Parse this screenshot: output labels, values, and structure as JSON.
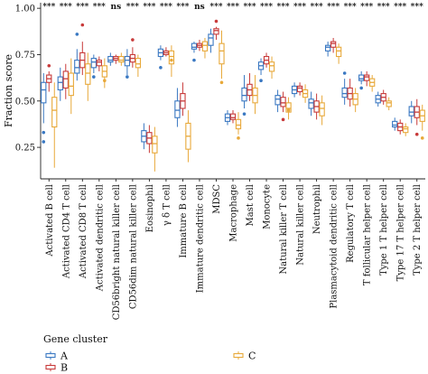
{
  "chart_data": {
    "type": "box",
    "ylabel": "Fraction score",
    "yticks": [
      0.25,
      0.5,
      0.75,
      1.0
    ],
    "ylim": [
      0.08,
      1.03
    ],
    "categories": [
      "Activated B cell",
      "Activated CD4 T cell",
      "Activated CD8 T cell",
      "Activated dendritic cell",
      "CD56bright natural killer cell",
      "CD56dim natural killer cell",
      "Eosinophil",
      "γ δ T cell",
      "Immature B cell",
      "Immature dendritic cell",
      "MDSC",
      "Macrophage",
      "Mast cell",
      "Monocyte",
      "Natural killer T cell",
      "Natural killer cell",
      "Neutrophil",
      "Plasmacytoid dendritic cell",
      "Regulatory T cell",
      "T follicular helper cell",
      "Type 1 T helper cell",
      "Type 17 T helper cell",
      "Type 2 T helper cell"
    ],
    "significance": [
      "***",
      "***",
      "***",
      "***",
      "ns",
      "***",
      "***",
      "***",
      "***",
      "ns",
      "***",
      "***",
      "***",
      "***",
      "***",
      "***",
      "***",
      "***",
      "***",
      "***",
      "***",
      "***",
      "***"
    ],
    "legend": {
      "title": "Gene cluster",
      "position": "bottom-left"
    },
    "series": [
      {
        "name": "A",
        "color": "#3a78c2",
        "boxes": [
          {
            "min": 0.38,
            "q1": 0.49,
            "median": 0.56,
            "q3": 0.6,
            "max": 0.65,
            "outliers": [
              0.33,
              0.28
            ]
          },
          {
            "min": 0.5,
            "q1": 0.56,
            "median": 0.6,
            "q3": 0.63,
            "max": 0.68,
            "outliers": []
          },
          {
            "min": 0.61,
            "q1": 0.65,
            "median": 0.68,
            "q3": 0.72,
            "max": 0.78,
            "outliers": [
              0.86
            ]
          },
          {
            "min": 0.65,
            "q1": 0.68,
            "median": 0.71,
            "q3": 0.73,
            "max": 0.75,
            "outliers": [
              0.63
            ]
          },
          {
            "min": 0.69,
            "q1": 0.71,
            "median": 0.72,
            "q3": 0.74,
            "max": 0.76,
            "outliers": []
          },
          {
            "min": 0.64,
            "q1": 0.69,
            "median": 0.72,
            "q3": 0.74,
            "max": 0.78,
            "outliers": [
              0.63
            ]
          },
          {
            "min": 0.24,
            "q1": 0.28,
            "median": 0.31,
            "q3": 0.34,
            "max": 0.38,
            "outliers": []
          },
          {
            "min": 0.72,
            "q1": 0.74,
            "median": 0.76,
            "q3": 0.78,
            "max": 0.8,
            "outliers": [
              0.68
            ]
          },
          {
            "min": 0.36,
            "q1": 0.41,
            "median": 0.45,
            "q3": 0.5,
            "max": 0.57,
            "outliers": []
          },
          {
            "min": 0.76,
            "q1": 0.78,
            "median": 0.79,
            "q3": 0.81,
            "max": 0.82,
            "outliers": [
              0.72
            ]
          },
          {
            "min": 0.76,
            "q1": 0.8,
            "median": 0.84,
            "q3": 0.86,
            "max": 0.89,
            "outliers": []
          },
          {
            "min": 0.37,
            "q1": 0.39,
            "median": 0.41,
            "q3": 0.43,
            "max": 0.45,
            "outliers": []
          },
          {
            "min": 0.46,
            "q1": 0.5,
            "median": 0.53,
            "q3": 0.57,
            "max": 0.64,
            "outliers": [
              0.43
            ]
          },
          {
            "min": 0.64,
            "q1": 0.67,
            "median": 0.69,
            "q3": 0.71,
            "max": 0.73,
            "outliers": [
              0.61
            ]
          },
          {
            "min": 0.44,
            "q1": 0.48,
            "median": 0.51,
            "q3": 0.53,
            "max": 0.56,
            "outliers": []
          },
          {
            "min": 0.52,
            "q1": 0.54,
            "median": 0.56,
            "q3": 0.58,
            "max": 0.6,
            "outliers": []
          },
          {
            "min": 0.42,
            "q1": 0.46,
            "median": 0.49,
            "q3": 0.51,
            "max": 0.55,
            "outliers": []
          },
          {
            "min": 0.74,
            "q1": 0.77,
            "median": 0.79,
            "q3": 0.8,
            "max": 0.82,
            "outliers": []
          },
          {
            "min": 0.48,
            "q1": 0.52,
            "median": 0.54,
            "q3": 0.57,
            "max": 0.62,
            "outliers": [
              0.65
            ]
          },
          {
            "min": 0.59,
            "q1": 0.61,
            "median": 0.62,
            "q3": 0.64,
            "max": 0.66,
            "outliers": [
              0.57
            ]
          },
          {
            "min": 0.47,
            "q1": 0.49,
            "median": 0.51,
            "q3": 0.53,
            "max": 0.55,
            "outliers": []
          },
          {
            "min": 0.34,
            "q1": 0.36,
            "median": 0.37,
            "q3": 0.39,
            "max": 0.41,
            "outliers": []
          },
          {
            "min": 0.38,
            "q1": 0.42,
            "median": 0.44,
            "q3": 0.47,
            "max": 0.5,
            "outliers": []
          }
        ]
      },
      {
        "name": "B",
        "color": "#c83a3a",
        "boxes": [
          {
            "min": 0.55,
            "q1": 0.6,
            "median": 0.62,
            "q3": 0.64,
            "max": 0.66,
            "outliers": [
              0.69
            ]
          },
          {
            "min": 0.51,
            "q1": 0.57,
            "median": 0.62,
            "q3": 0.66,
            "max": 0.7,
            "outliers": []
          },
          {
            "min": 0.64,
            "q1": 0.68,
            "median": 0.72,
            "q3": 0.76,
            "max": 0.82,
            "outliers": [
              0.91
            ]
          },
          {
            "min": 0.66,
            "q1": 0.69,
            "median": 0.71,
            "q3": 0.72,
            "max": 0.74,
            "outliers": []
          },
          {
            "min": 0.7,
            "q1": 0.72,
            "median": 0.73,
            "q3": 0.74,
            "max": 0.75,
            "outliers": []
          },
          {
            "min": 0.68,
            "q1": 0.71,
            "median": 0.73,
            "q3": 0.75,
            "max": 0.79,
            "outliers": [
              0.83
            ]
          },
          {
            "min": 0.22,
            "q1": 0.27,
            "median": 0.3,
            "q3": 0.33,
            "max": 0.37,
            "outliers": []
          },
          {
            "min": 0.74,
            "q1": 0.75,
            "median": 0.76,
            "q3": 0.77,
            "max": 0.79,
            "outliers": []
          },
          {
            "min": 0.42,
            "q1": 0.46,
            "median": 0.5,
            "q3": 0.54,
            "max": 0.6,
            "outliers": []
          },
          {
            "min": 0.77,
            "q1": 0.79,
            "median": 0.8,
            "q3": 0.81,
            "max": 0.83,
            "outliers": []
          },
          {
            "min": 0.83,
            "q1": 0.86,
            "median": 0.88,
            "q3": 0.89,
            "max": 0.9,
            "outliers": [
              0.93
            ]
          },
          {
            "min": 0.38,
            "q1": 0.4,
            "median": 0.41,
            "q3": 0.43,
            "max": 0.45,
            "outliers": []
          },
          {
            "min": 0.5,
            "q1": 0.53,
            "median": 0.56,
            "q3": 0.59,
            "max": 0.65,
            "outliers": []
          },
          {
            "min": 0.68,
            "q1": 0.7,
            "median": 0.72,
            "q3": 0.74,
            "max": 0.76,
            "outliers": []
          },
          {
            "min": 0.44,
            "q1": 0.47,
            "median": 0.49,
            "q3": 0.52,
            "max": 0.55,
            "outliers": [
              0.4
            ]
          },
          {
            "min": 0.53,
            "q1": 0.55,
            "median": 0.57,
            "q3": 0.58,
            "max": 0.6,
            "outliers": []
          },
          {
            "min": 0.4,
            "q1": 0.44,
            "median": 0.47,
            "q3": 0.5,
            "max": 0.54,
            "outliers": []
          },
          {
            "min": 0.76,
            "q1": 0.79,
            "median": 0.81,
            "q3": 0.82,
            "max": 0.84,
            "outliers": []
          },
          {
            "min": 0.47,
            "q1": 0.51,
            "median": 0.54,
            "q3": 0.57,
            "max": 0.62,
            "outliers": []
          },
          {
            "min": 0.58,
            "q1": 0.61,
            "median": 0.63,
            "q3": 0.64,
            "max": 0.66,
            "outliers": []
          },
          {
            "min": 0.48,
            "q1": 0.5,
            "median": 0.52,
            "q3": 0.54,
            "max": 0.56,
            "outliers": []
          },
          {
            "min": 0.32,
            "q1": 0.34,
            "median": 0.36,
            "q3": 0.38,
            "max": 0.4,
            "outliers": []
          },
          {
            "min": 0.37,
            "q1": 0.41,
            "median": 0.44,
            "q3": 0.47,
            "max": 0.51,
            "outliers": [
              0.32
            ]
          }
        ]
      },
      {
        "name": "C",
        "color": "#e8a93a",
        "boxes": [
          {
            "min": 0.14,
            "q1": 0.36,
            "median": 0.45,
            "q3": 0.52,
            "max": 0.6,
            "outliers": []
          },
          {
            "min": 0.43,
            "q1": 0.53,
            "median": 0.58,
            "q3": 0.65,
            "max": 0.73,
            "outliers": []
          },
          {
            "min": 0.5,
            "q1": 0.59,
            "median": 0.65,
            "q3": 0.7,
            "max": 0.76,
            "outliers": []
          },
          {
            "min": 0.57,
            "q1": 0.63,
            "median": 0.66,
            "q3": 0.69,
            "max": 0.73,
            "outliers": [
              0.61
            ]
          },
          {
            "min": 0.69,
            "q1": 0.71,
            "median": 0.72,
            "q3": 0.74,
            "max": 0.76,
            "outliers": []
          },
          {
            "min": 0.63,
            "q1": 0.68,
            "median": 0.7,
            "q3": 0.73,
            "max": 0.75,
            "outliers": []
          },
          {
            "min": 0.12,
            "q1": 0.22,
            "median": 0.27,
            "q3": 0.31,
            "max": 0.36,
            "outliers": []
          },
          {
            "min": 0.63,
            "q1": 0.7,
            "median": 0.74,
            "q3": 0.77,
            "max": 0.8,
            "outliers": [
              0.72
            ]
          },
          {
            "min": 0.17,
            "q1": 0.24,
            "median": 0.31,
            "q3": 0.38,
            "max": 0.45,
            "outliers": []
          },
          {
            "min": 0.73,
            "q1": 0.77,
            "median": 0.8,
            "q3": 0.82,
            "max": 0.84,
            "outliers": []
          },
          {
            "min": 0.62,
            "q1": 0.7,
            "median": 0.77,
            "q3": 0.81,
            "max": 0.88,
            "outliers": [
              0.6
            ]
          },
          {
            "min": 0.32,
            "q1": 0.35,
            "median": 0.37,
            "q3": 0.4,
            "max": 0.44,
            "outliers": [
              0.3
            ]
          },
          {
            "min": 0.43,
            "q1": 0.49,
            "median": 0.53,
            "q3": 0.57,
            "max": 0.64,
            "outliers": []
          },
          {
            "min": 0.62,
            "q1": 0.66,
            "median": 0.69,
            "q3": 0.71,
            "max": 0.74,
            "outliers": []
          },
          {
            "min": 0.4,
            "q1": 0.44,
            "median": 0.46,
            "q3": 0.49,
            "max": 0.52,
            "outliers": [
              0.45
            ]
          },
          {
            "min": 0.49,
            "q1": 0.52,
            "median": 0.54,
            "q3": 0.56,
            "max": 0.59,
            "outliers": []
          },
          {
            "min": 0.37,
            "q1": 0.42,
            "median": 0.46,
            "q3": 0.49,
            "max": 0.53,
            "outliers": []
          },
          {
            "min": 0.7,
            "q1": 0.74,
            "median": 0.77,
            "q3": 0.79,
            "max": 0.81,
            "outliers": []
          },
          {
            "min": 0.44,
            "q1": 0.48,
            "median": 0.51,
            "q3": 0.54,
            "max": 0.57,
            "outliers": []
          },
          {
            "min": 0.55,
            "q1": 0.58,
            "median": 0.6,
            "q3": 0.62,
            "max": 0.64,
            "outliers": []
          },
          {
            "min": 0.45,
            "q1": 0.47,
            "median": 0.49,
            "q3": 0.5,
            "max": 0.52,
            "outliers": []
          },
          {
            "min": 0.31,
            "q1": 0.33,
            "median": 0.35,
            "q3": 0.36,
            "max": 0.38,
            "outliers": []
          },
          {
            "min": 0.34,
            "q1": 0.39,
            "median": 0.42,
            "q3": 0.45,
            "max": 0.48,
            "outliers": [
              0.3
            ]
          }
        ]
      }
    ]
  }
}
